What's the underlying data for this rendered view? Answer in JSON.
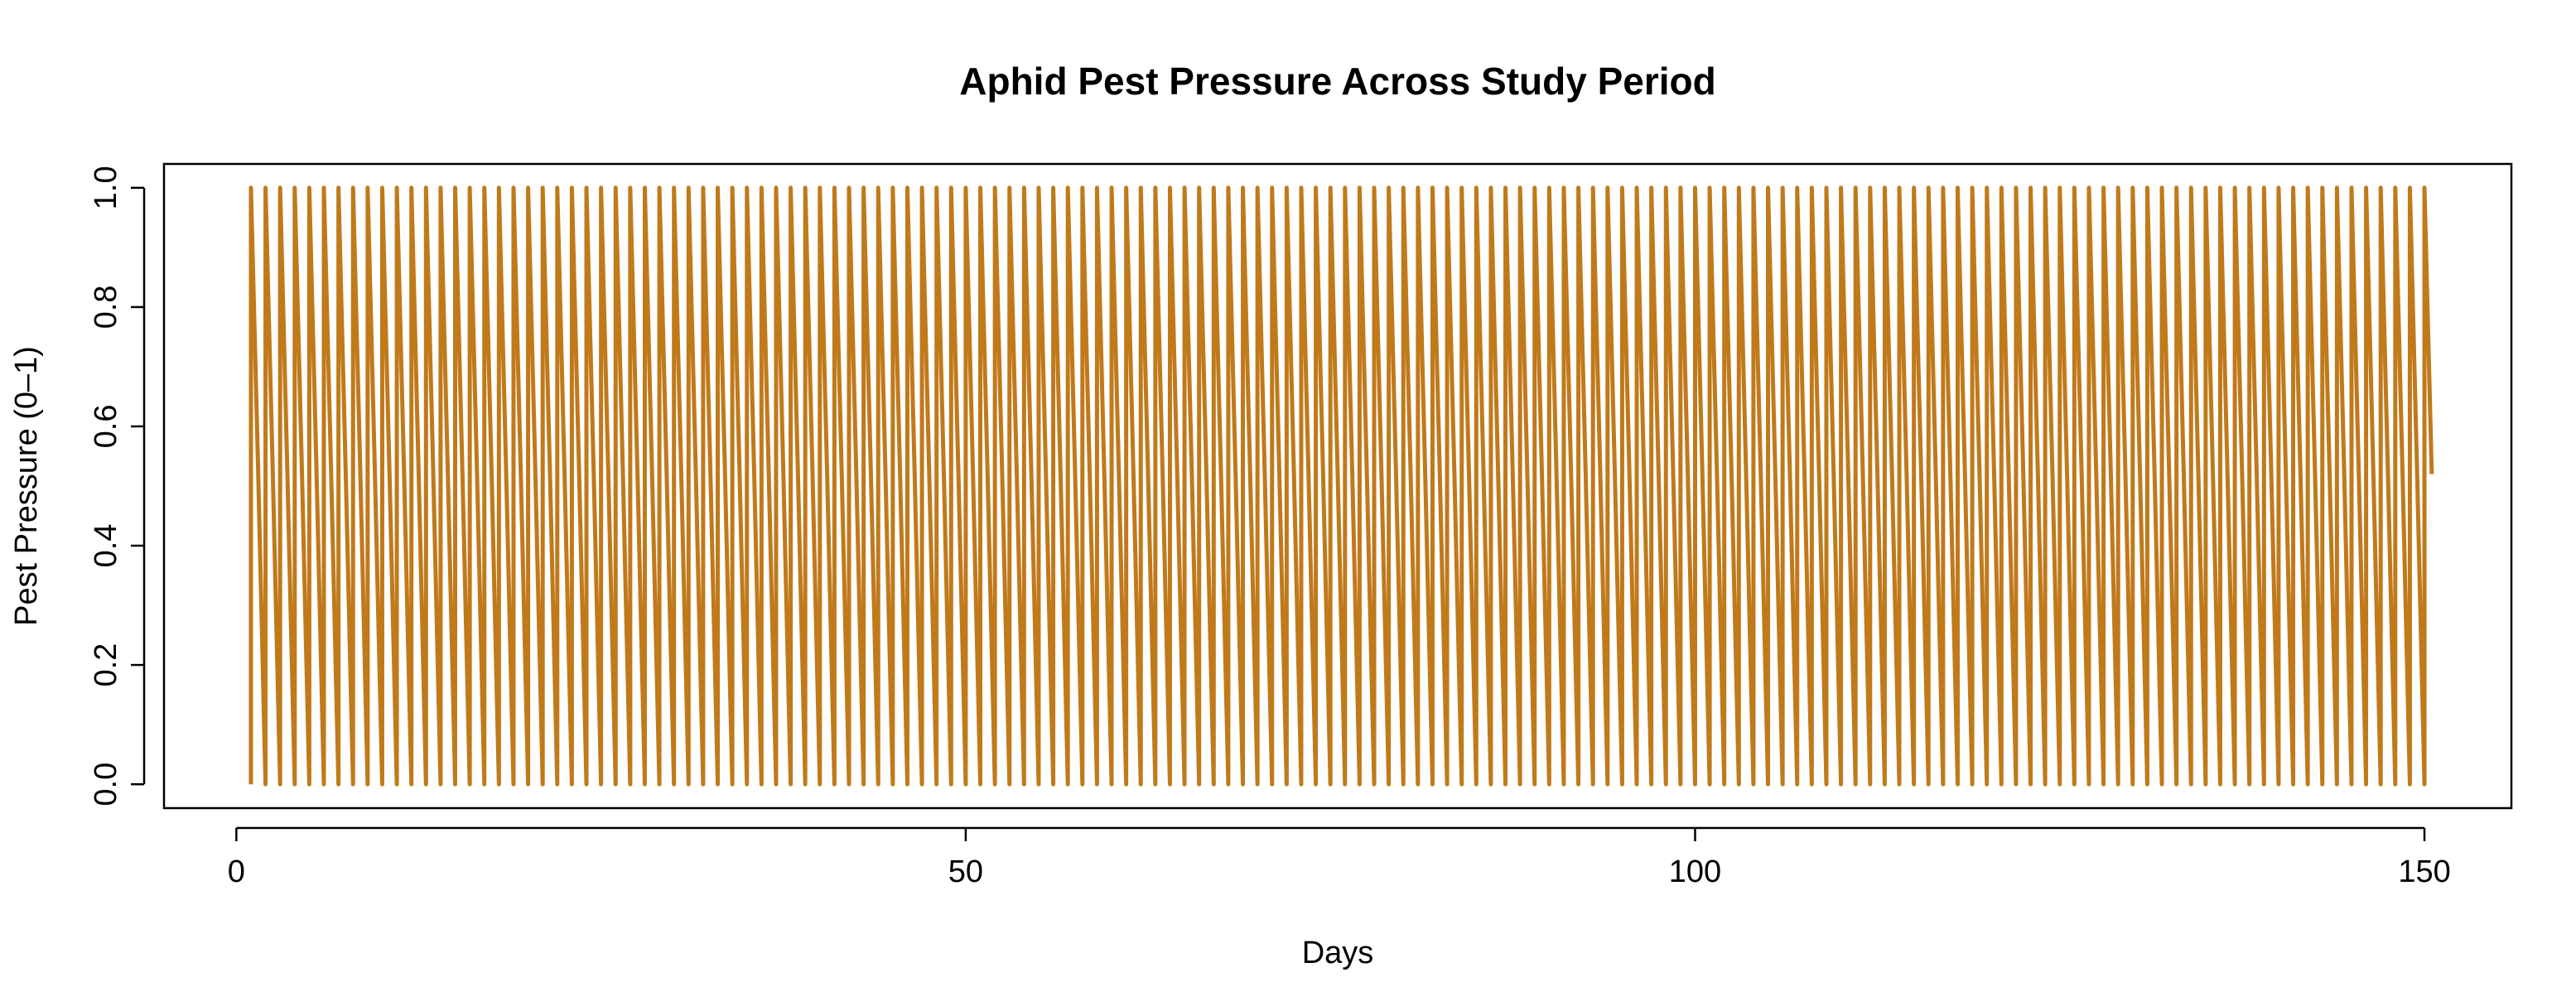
{
  "chart_data": {
    "type": "line",
    "title": "Aphid Pest Pressure Across Study Period",
    "xlabel": "Days",
    "ylabel": "Pest Pressure (0–1)",
    "xlim": [
      -4.96,
      155.96
    ],
    "ylim": [
      -0.04,
      1.04
    ],
    "xticks": [
      0,
      50,
      100,
      150
    ],
    "yticks": [
      0.0,
      0.2,
      0.4,
      0.6,
      0.8,
      1.0
    ],
    "xtick_labels": [
      "0",
      "50",
      "100",
      "150"
    ],
    "ytick_labels": [
      "0.0",
      "0.2",
      "0.4",
      "0.6",
      "0.8",
      "1.0"
    ],
    "grid": false,
    "legend": "none",
    "color": "#C07A1A",
    "series": [
      {
        "description_of_shape": "repeated each day",
        "x_start": 1,
        "x_end": 150,
        "pattern_per_day": [
          {
            "dx": 0.0,
            "y": 0.0
          },
          {
            "dx": 0.0,
            "y": 1.0
          },
          {
            "dx": 0.5,
            "y": 0.52
          }
        ]
      }
    ]
  }
}
